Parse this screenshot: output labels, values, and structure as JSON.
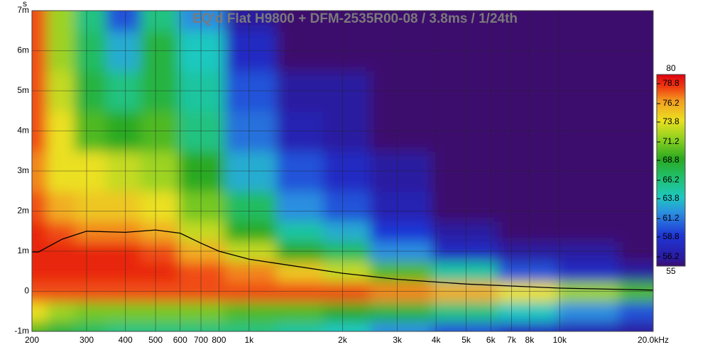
{
  "chart_data": {
    "type": "heatmap",
    "title": "EQ'd Flat H9800 + DFM-2535R00-08 / 3.8ms / 1/24th",
    "y_unit_label": "s",
    "x": [
      200,
      250,
      300,
      400,
      500,
      700,
      1000,
      1500,
      2000,
      3000,
      5000,
      8000,
      12000,
      20000
    ],
    "y": [
      -0.001,
      -0.0005,
      0,
      0.0005,
      0.001,
      0.0015,
      0.002,
      0.003,
      0.004,
      0.005,
      0.006,
      0.007
    ],
    "z": [
      [
        70,
        68,
        67,
        66,
        66,
        66,
        66,
        65,
        64,
        62,
        60,
        58,
        57,
        56
      ],
      [
        74,
        72,
        71,
        71,
        71,
        71,
        70,
        70,
        69,
        68,
        66,
        64,
        62,
        60
      ],
      [
        78,
        78,
        78,
        78,
        78,
        78,
        78,
        78,
        78,
        77,
        76,
        74,
        72,
        70
      ],
      [
        79,
        79,
        79,
        79,
        79,
        78,
        77,
        75,
        73,
        70,
        65,
        60,
        58,
        56
      ],
      [
        79,
        79,
        79,
        79,
        78,
        76,
        73,
        69,
        67,
        62,
        58,
        56,
        56,
        55
      ],
      [
        79,
        78,
        77,
        77,
        76,
        73,
        69,
        65,
        63,
        59,
        56,
        55,
        55,
        55
      ],
      [
        78,
        76,
        75,
        75,
        74,
        71,
        67,
        62,
        60,
        57,
        55,
        55,
        55,
        55
      ],
      [
        77,
        74,
        74,
        73,
        72,
        69,
        63,
        60,
        58,
        56,
        55,
        55,
        55,
        55
      ],
      [
        78,
        74,
        70,
        69,
        70,
        66,
        61,
        57,
        56,
        55,
        55,
        55,
        55,
        55
      ],
      [
        78,
        73,
        68,
        66,
        68,
        65,
        60,
        56,
        56,
        55,
        55,
        55,
        55,
        55
      ],
      [
        78,
        72,
        67,
        63,
        68,
        64,
        58,
        55,
        55,
        55,
        55,
        55,
        55,
        55
      ],
      [
        78,
        72,
        66,
        60,
        66,
        62,
        56,
        55,
        55,
        55,
        55,
        55,
        55,
        55
      ]
    ],
    "overlay": {
      "color": "#000000",
      "x": [
        200,
        210,
        250,
        300,
        400,
        500,
        600,
        700,
        800,
        1000,
        2000,
        3000,
        5000,
        10000,
        20000
      ],
      "values": [
        0.00098,
        0.00098,
        0.0013,
        0.0015,
        0.00147,
        0.00153,
        0.00145,
        0.0012,
        0.001,
        0.0008,
        0.00045,
        0.0003,
        0.00018,
        8e-05,
        3e-05
      ]
    },
    "log_x": true,
    "xlim": [
      200,
      20000
    ],
    "xticks": [
      {
        "value": 200,
        "label": "200"
      },
      {
        "value": 300,
        "label": "300"
      },
      {
        "value": 400,
        "label": "400"
      },
      {
        "value": 500,
        "label": "500"
      },
      {
        "value": 600,
        "label": "600"
      },
      {
        "value": 700,
        "label": "700"
      },
      {
        "value": 800,
        "label": "800"
      },
      {
        "value": 1000,
        "label": "1k"
      },
      {
        "value": 2000,
        "label": "2k"
      },
      {
        "value": 3000,
        "label": "3k"
      },
      {
        "value": 4000,
        "label": "4k"
      },
      {
        "value": 5000,
        "label": "5k"
      },
      {
        "value": 6000,
        "label": "6k"
      },
      {
        "value": 7000,
        "label": "7k"
      },
      {
        "value": 8000,
        "label": "8k"
      },
      {
        "value": 10000,
        "label": "10k"
      },
      {
        "value": 20000,
        "label": "20.0kHz"
      }
    ],
    "ylim": [
      -0.001,
      0.007
    ],
    "yticks": [
      {
        "value": -0.001,
        "label": "-1m"
      },
      0,
      {
        "value": 0.001,
        "label": "1m"
      },
      {
        "value": 0.002,
        "label": "2m"
      },
      {
        "value": 0.003,
        "label": "3m"
      },
      {
        "value": 0.004,
        "label": "4m"
      },
      {
        "value": 0.005,
        "label": "5m"
      },
      {
        "value": 0.006,
        "label": "6m"
      },
      {
        "value": 0.007,
        "label": "7m"
      }
    ],
    "clim": [
      55,
      80
    ],
    "cticks": [
      55,
      56.2,
      58.8,
      61.2,
      63.8,
      66.2,
      68.8,
      71.2,
      73.8,
      76.2,
      78.8,
      80
    ],
    "grid": true
  }
}
